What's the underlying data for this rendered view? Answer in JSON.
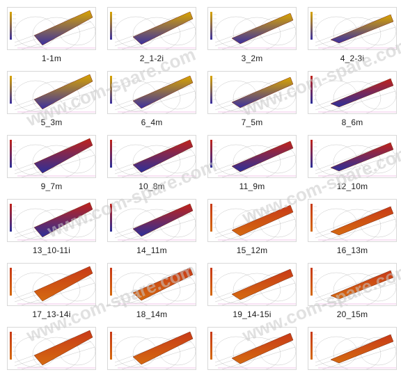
{
  "gallery": {
    "items": [
      {
        "label": "1-1m",
        "scheme": "early"
      },
      {
        "label": "2_1-2i",
        "scheme": "early"
      },
      {
        "label": "3_2m",
        "scheme": "early"
      },
      {
        "label": "4_2-3i",
        "scheme": "early"
      },
      {
        "label": "5_3m",
        "scheme": "early"
      },
      {
        "label": "6_4m",
        "scheme": "early"
      },
      {
        "label": "7_5m",
        "scheme": "early"
      },
      {
        "label": "8_6m",
        "scheme": "mid"
      },
      {
        "label": "9_7m",
        "scheme": "mid"
      },
      {
        "label": "10_8m",
        "scheme": "mid"
      },
      {
        "label": "11_9m",
        "scheme": "mid"
      },
      {
        "label": "12_10m",
        "scheme": "mid"
      },
      {
        "label": "13_10-11i",
        "scheme": "mid"
      },
      {
        "label": "14_11m",
        "scheme": "mid"
      },
      {
        "label": "15_12m",
        "scheme": "late"
      },
      {
        "label": "16_13m",
        "scheme": "late"
      },
      {
        "label": "17_13-14i",
        "scheme": "late"
      },
      {
        "label": "18_14m",
        "scheme": "late"
      },
      {
        "label": "19_14-15i",
        "scheme": "late"
      },
      {
        "label": "20_15m",
        "scheme": "late"
      },
      {
        "label": "",
        "scheme": "late"
      },
      {
        "label": "",
        "scheme": "late"
      },
      {
        "label": "",
        "scheme": "late"
      },
      {
        "label": "",
        "scheme": "late"
      }
    ]
  },
  "watermark": {
    "text": "www.com-spare.com"
  },
  "colors": {
    "early_top": "#d9a400",
    "early_bottom": "#3a2fa0",
    "mid_top": "#c0221a",
    "mid_bottom": "#2b2f9a",
    "late_top": "#c83a18",
    "late_bottom": "#d46a10",
    "wire": "#9a9a9a"
  }
}
